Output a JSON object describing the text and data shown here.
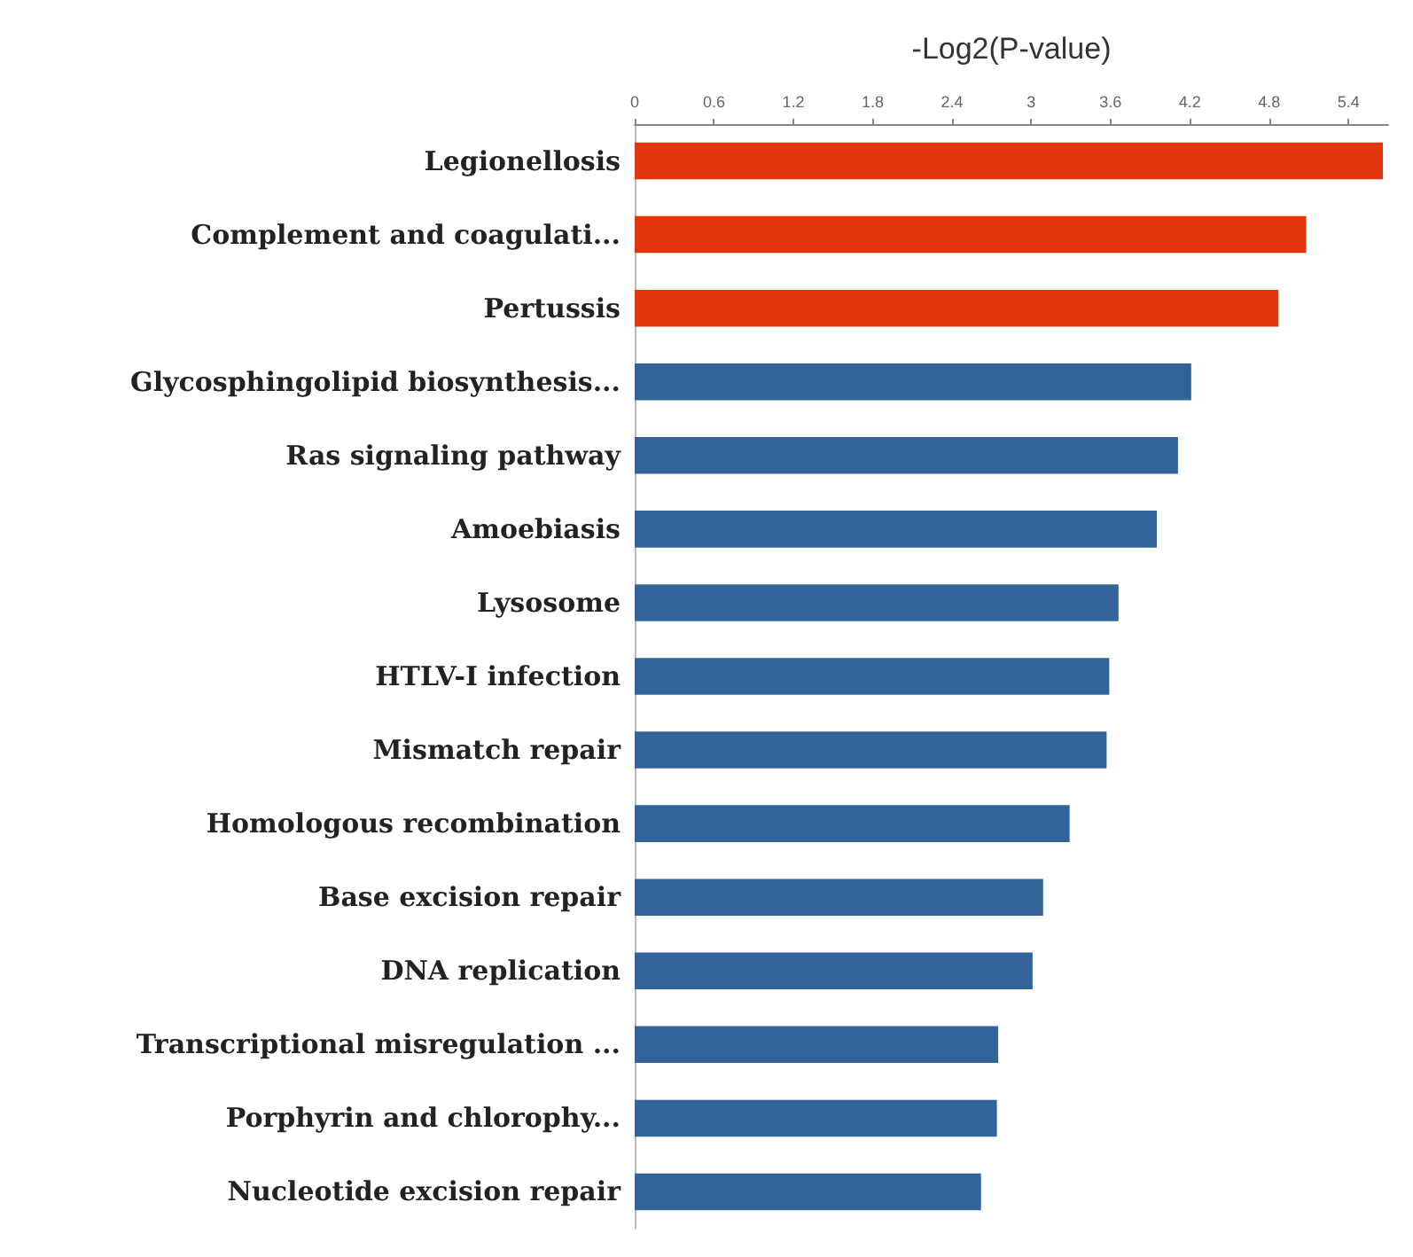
{
  "chart_data": {
    "type": "bar",
    "orientation": "horizontal",
    "xlabel": "-Log2(P-value)",
    "categories": [
      "Legionellosis",
      "Complement and coagulati...",
      "Pertussis",
      "Glycosphingolipid biosynthesis...",
      "Ras signaling pathway",
      "Amoebiasis",
      "Lysosome",
      "HTLV-I infection",
      "Mismatch repair",
      "Homologous recombination",
      "Base excision repair",
      "DNA replication",
      "Transcriptional misregulation ...",
      "Porphyrin and chlorophy...",
      "Nucleotide excision repair"
    ],
    "values": [
      5.66,
      5.08,
      4.87,
      4.21,
      4.11,
      3.95,
      3.66,
      3.59,
      3.57,
      3.29,
      3.09,
      3.01,
      2.75,
      2.74,
      2.62
    ],
    "colors": [
      "#e2360f",
      "#e2360f",
      "#e2360f",
      "#32649a",
      "#32649a",
      "#32649a",
      "#32649a",
      "#32649a",
      "#32649a",
      "#32649a",
      "#32649a",
      "#32649a",
      "#32649a",
      "#32649a",
      "#32649a"
    ],
    "xlim": [
      0,
      5.7
    ],
    "xticks": [
      0,
      0.6,
      1.2,
      1.8,
      2.4,
      3,
      3.6,
      4.2,
      4.8,
      5.4
    ],
    "grid": false
  }
}
